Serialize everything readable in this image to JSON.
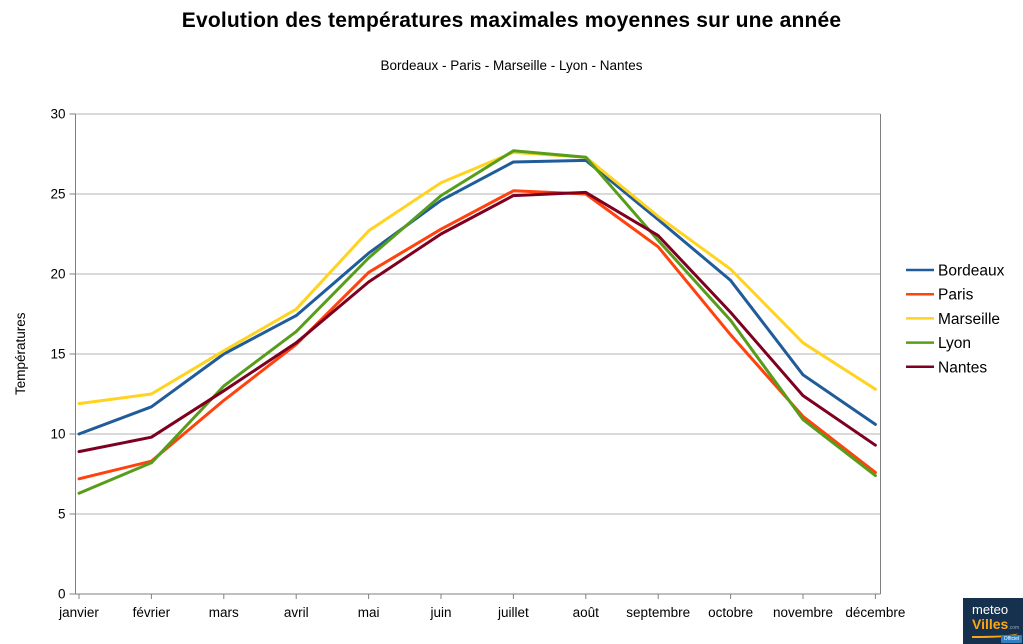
{
  "title": "Evolution des températures maximales moyennes sur une année",
  "subtitle": "Bordeaux - Paris - Marseille - Lyon - Nantes",
  "y_axis_title": "Températures",
  "logo": {
    "line1": "meteo",
    "line2": "Villes",
    "suffix": ".com",
    "badge": "Officiel",
    "bg_color": "#16314d",
    "accent_color": "#ffa413"
  },
  "chart_data": {
    "type": "line",
    "title": "Evolution des températures maximales moyennes sur une année",
    "subtitle": "Bordeaux - Paris - Marseille - Lyon - Nantes",
    "xlabel": "",
    "ylabel": "Températures",
    "ylim": [
      0,
      30
    ],
    "ytick_step": 5,
    "grid": true,
    "legend_position": "right",
    "categories": [
      "janvier",
      "février",
      "mars",
      "avril",
      "mai",
      "juin",
      "juillet",
      "août",
      "septembre",
      "octobre",
      "novembre",
      "décembre"
    ],
    "series": [
      {
        "name": "Bordeaux",
        "color": "#1f5c99",
        "values": [
          10.0,
          11.7,
          15.0,
          17.4,
          21.3,
          24.6,
          27.0,
          27.1,
          23.4,
          19.6,
          13.7,
          10.6
        ]
      },
      {
        "name": "Paris",
        "color": "#ff420e",
        "values": [
          7.2,
          8.3,
          12.1,
          15.6,
          20.1,
          22.8,
          25.2,
          25.0,
          21.7,
          16.2,
          11.1,
          7.6
        ]
      },
      {
        "name": "Marseille",
        "color": "#ffd320",
        "values": [
          11.9,
          12.5,
          15.2,
          17.8,
          22.7,
          25.7,
          27.6,
          27.3,
          23.6,
          20.3,
          15.7,
          12.8
        ]
      },
      {
        "name": "Lyon",
        "color": "#579d1c",
        "values": [
          6.3,
          8.2,
          13.0,
          16.4,
          21.0,
          24.9,
          27.7,
          27.3,
          22.1,
          17.1,
          10.9,
          7.4
        ]
      },
      {
        "name": "Nantes",
        "color": "#7e0021",
        "values": [
          8.9,
          9.8,
          12.7,
          15.7,
          19.5,
          22.5,
          24.9,
          25.1,
          22.4,
          17.6,
          12.4,
          9.3
        ]
      }
    ],
    "axis_color": "#808080",
    "grid_color": "#b6b6b6"
  }
}
